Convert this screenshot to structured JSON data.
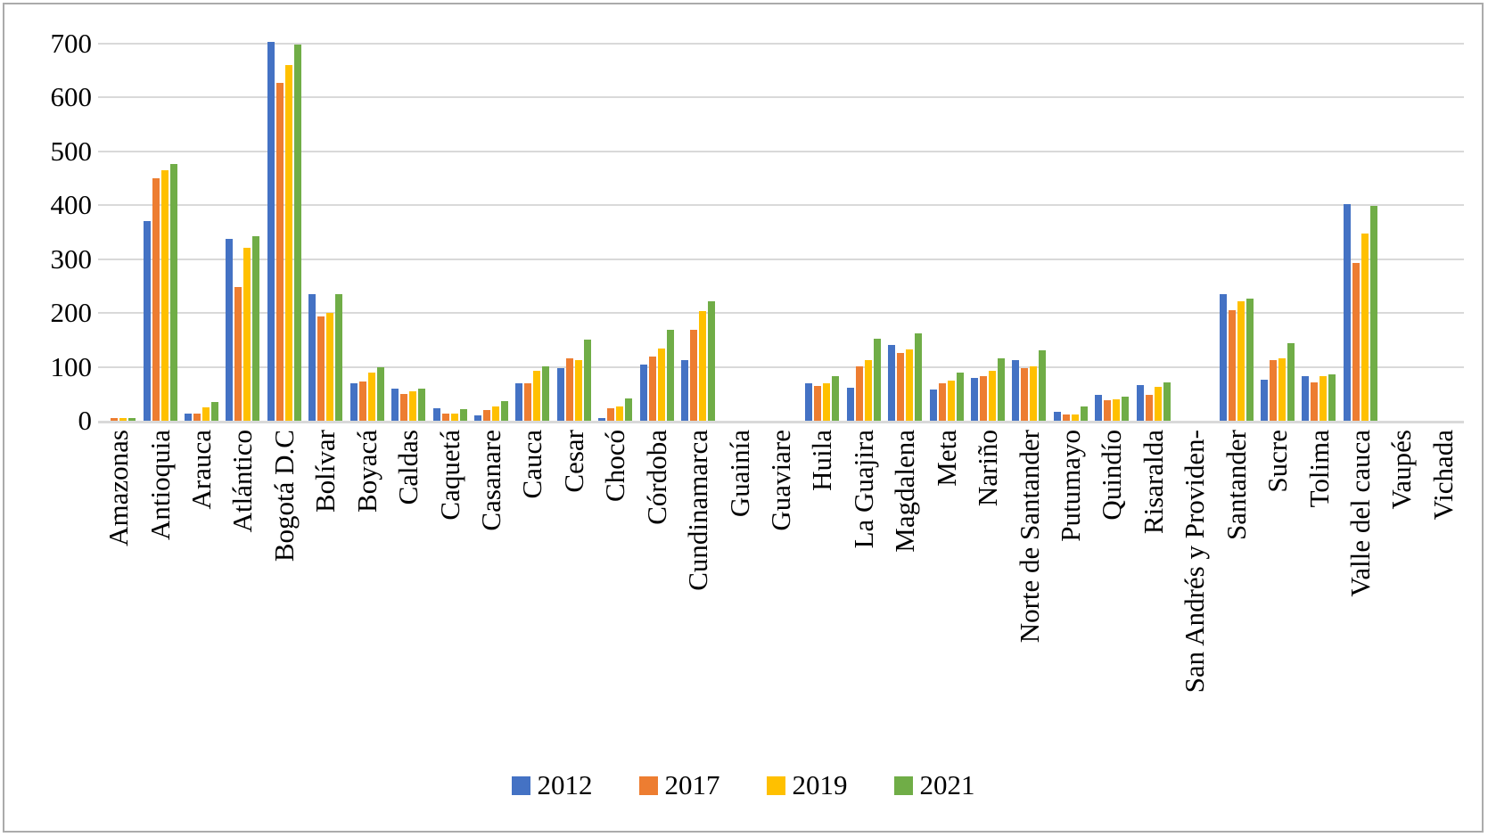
{
  "chart_data": {
    "type": "bar",
    "title": "",
    "xlabel": "",
    "ylabel": "",
    "categories": [
      "Amazonas",
      "Antioquia",
      "Arauca",
      "Atlántico",
      "Bogotá D.C",
      "Bolívar",
      "Boyacá",
      "Caldas",
      "Caquetá",
      "Casanare",
      "Cauca",
      "Cesar",
      "Chocó",
      "Córdoba",
      "Cundinamarca",
      "Guainía",
      "Guaviare",
      "Huila",
      "La Guajira",
      "Magdalena",
      "Meta",
      "Nariño",
      "Norte de Santander",
      "Putumayo",
      "Quindío",
      "Risaralda",
      "San Andrés y Providen-",
      "Santander",
      "Sucre",
      "Tolima",
      "Valle del cauca",
      "Vaupés",
      "Vichada"
    ],
    "series": [
      {
        "name": "2012",
        "color": "#4472C4",
        "values": [
          0,
          370,
          14,
          338,
          703,
          235,
          70,
          60,
          24,
          10,
          70,
          98,
          5,
          104,
          112,
          0,
          0,
          70,
          62,
          140,
          58,
          79,
          112,
          17,
          48,
          66,
          0,
          235,
          76,
          82,
          402,
          0,
          0
        ]
      },
      {
        "name": "2017",
        "color": "#ED7D31",
        "values": [
          5,
          450,
          13,
          249,
          628,
          194,
          73,
          49,
          13,
          20,
          70,
          116,
          24,
          119,
          169,
          0,
          0,
          65,
          101,
          125,
          70,
          83,
          97,
          12,
          38,
          48,
          0,
          205,
          112,
          72,
          293,
          0,
          0
        ]
      },
      {
        "name": "2019",
        "color": "#FFC000",
        "values": [
          5,
          465,
          25,
          321,
          661,
          200,
          90,
          55,
          13,
          27,
          92,
          112,
          27,
          134,
          203,
          0,
          0,
          70,
          113,
          132,
          75,
          92,
          101,
          12,
          40,
          63,
          0,
          221,
          116,
          83,
          347,
          0,
          0
        ]
      },
      {
        "name": "2021",
        "color": "#70AD47",
        "values": [
          5,
          477,
          34,
          342,
          699,
          235,
          99,
          60,
          21,
          36,
          101,
          151,
          42,
          169,
          221,
          0,
          0,
          83,
          153,
          162,
          89,
          116,
          130,
          27,
          45,
          71,
          0,
          226,
          144,
          86,
          399,
          0,
          0
        ]
      }
    ],
    "ylim": [
      0,
      700
    ],
    "yticks": [
      0,
      100,
      200,
      300,
      400,
      500,
      600,
      700
    ],
    "grid": true,
    "legend_position": "bottom"
  },
  "colors": {
    "gridline": "#D9D9D9",
    "axis": "#D9D9D9",
    "text": "#000000",
    "frame_border": "#ABABAB",
    "background": "#FFFFFF"
  }
}
